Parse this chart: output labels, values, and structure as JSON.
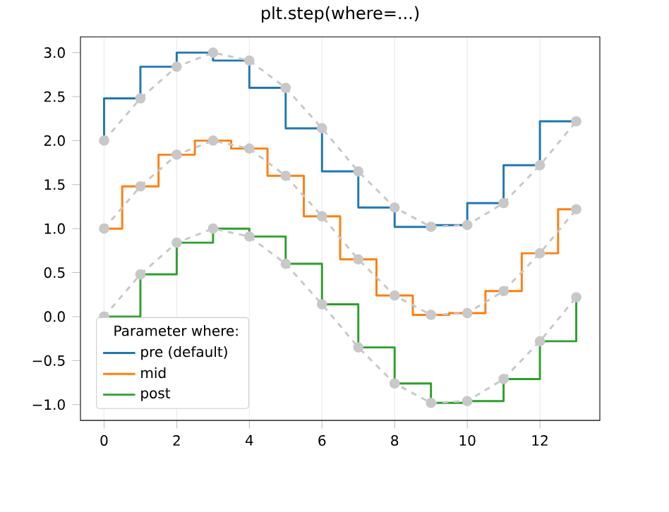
{
  "chart_data": {
    "type": "step",
    "title": "plt.step(where=...)",
    "legend_title": "Parameter where:",
    "x": [
      0,
      1,
      2,
      3,
      4,
      5,
      6,
      7,
      8,
      9,
      10,
      11,
      12,
      13
    ],
    "series": [
      {
        "name": "pre (default)",
        "color": "#1f77b4",
        "values": [
          2.0,
          2.48,
          2.84,
          3.0,
          2.91,
          2.6,
          2.14,
          1.65,
          1.24,
          1.02,
          1.04,
          1.29,
          1.72,
          2.22
        ]
      },
      {
        "type": "line",
        "color": "#c8c8c8",
        "marker": "circle",
        "line_style": "dashed",
        "values": [
          2.0,
          2.48,
          2.84,
          3.0,
          2.91,
          2.6,
          2.14,
          1.65,
          1.24,
          1.02,
          1.04,
          1.29,
          1.72,
          2.22
        ]
      },
      {
        "name": "mid",
        "color": "#ff7f0e",
        "values": [
          1.0,
          1.48,
          1.84,
          2.0,
          1.91,
          1.6,
          1.14,
          0.65,
          0.24,
          0.02,
          0.04,
          0.29,
          0.72,
          1.22
        ]
      },
      {
        "type": "line",
        "color": "#c8c8c8",
        "marker": "circle",
        "line_style": "dashed",
        "values": [
          1.0,
          1.48,
          1.84,
          2.0,
          1.91,
          1.6,
          1.14,
          0.65,
          0.24,
          0.02,
          0.04,
          0.29,
          0.72,
          1.22
        ]
      },
      {
        "name": "post",
        "color": "#2ca02c",
        "values": [
          0.0,
          0.48,
          0.84,
          1.0,
          0.91,
          0.6,
          0.14,
          -0.35,
          -0.76,
          -0.98,
          -0.96,
          -0.71,
          -0.28,
          0.22
        ]
      },
      {
        "type": "line",
        "color": "#c8c8c8",
        "marker": "circle",
        "line_style": "dashed",
        "values": [
          0.0,
          0.48,
          0.84,
          1.0,
          0.91,
          0.6,
          0.14,
          -0.35,
          -0.76,
          -0.98,
          -0.96,
          -0.71,
          -0.28,
          0.22
        ]
      }
    ],
    "xlim": [
      -0.65,
      13.65
    ],
    "ylim": [
      -1.18,
      3.18
    ],
    "xticks": [
      0,
      2,
      4,
      6,
      8,
      10,
      12
    ],
    "yticks": [
      {
        "value": -1.0,
        "label": "−1.0"
      },
      {
        "value": -0.5,
        "label": "−0.5"
      },
      {
        "value": 0.0,
        "label": "0.0"
      },
      {
        "value": 0.5,
        "label": "0.5"
      },
      {
        "value": 1.0,
        "label": "1.0"
      },
      {
        "value": 1.5,
        "label": "1.5"
      },
      {
        "value": 2.0,
        "label": "2.0"
      },
      {
        "value": 2.5,
        "label": "2.5"
      },
      {
        "value": 3.0,
        "label": "3.0"
      }
    ],
    "grid": "x",
    "legend": "bottom left"
  }
}
